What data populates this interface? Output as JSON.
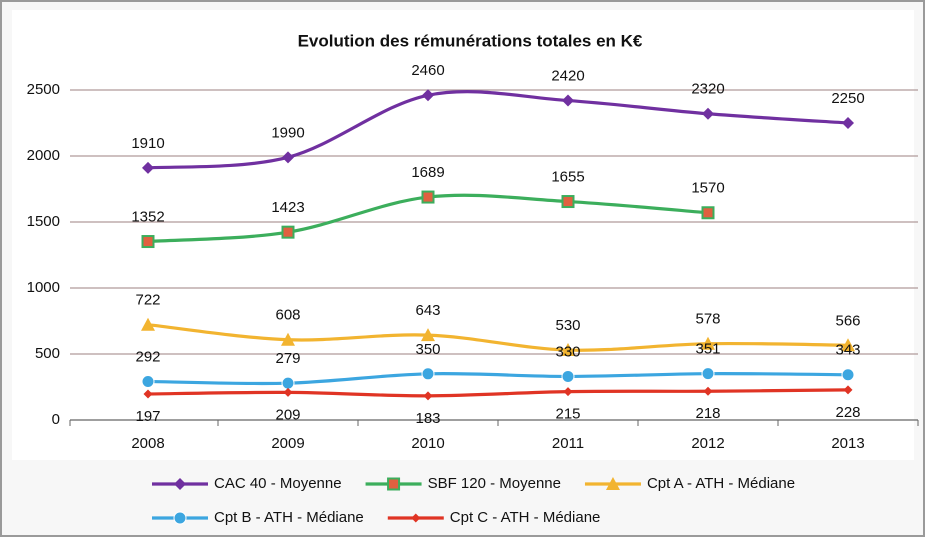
{
  "chart_data": {
    "type": "line",
    "title": "Evolution des rémunérations totales en K€",
    "categories": [
      "2008",
      "2009",
      "2010",
      "2011",
      "2012",
      "2013"
    ],
    "series": [
      {
        "name": "CAC 40 - Moyenne",
        "color": "#7030a0",
        "marker": "diamond",
        "label_position": "above",
        "values": [
          1910,
          1990,
          2460,
          2420,
          2320,
          2250
        ]
      },
      {
        "name": "SBF 120 - Moyenne",
        "color": "#3cae5c",
        "marker": "square",
        "label_position": "above",
        "values": [
          1352,
          1423,
          1689,
          1655,
          1570,
          null
        ]
      },
      {
        "name": "Cpt A - ATH - Médiane",
        "color": "#f2b430",
        "marker": "triangle",
        "label_position": "above",
        "values": [
          722,
          608,
          643,
          530,
          578,
          566
        ]
      },
      {
        "name": "Cpt B - ATH - Médiane",
        "color": "#3ca6e0",
        "marker": "circle",
        "label_position": "above",
        "values": [
          292,
          279,
          350,
          330,
          351,
          343
        ]
      },
      {
        "name": "Cpt C - ATH - Médiane",
        "color": "#e03424",
        "marker": "small-diamond",
        "label_position": "below",
        "values": [
          197,
          209,
          183,
          215,
          218,
          228
        ]
      }
    ],
    "ylim": [
      0,
      2500
    ],
    "yticks": [
      0,
      500,
      1000,
      1500,
      2000,
      2500
    ],
    "grid": true,
    "legend": "bottom"
  }
}
